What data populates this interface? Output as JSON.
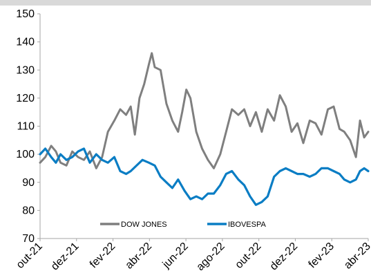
{
  "chart_data": {
    "type": "line",
    "title": "",
    "xlabel": "",
    "ylabel": "",
    "ylim": [
      70,
      150
    ],
    "yticks": [
      70,
      80,
      90,
      100,
      110,
      120,
      130,
      140,
      150
    ],
    "x_tick_labels": [
      "out-21",
      "dez-21",
      "fev-22",
      "abr-22",
      "jun-22",
      "ago-22",
      "out-22",
      "dez-22",
      "fev-23",
      "abr-23"
    ],
    "grid": false,
    "legend_position": "bottom-left",
    "x_start": "2021-10-01",
    "x_end": "2023-04-15",
    "series": [
      {
        "name": "DOW JONES",
        "color": "#7f7f7f",
        "points": [
          [
            "2021-10-01",
            97
          ],
          [
            "2021-10-10",
            99
          ],
          [
            "2021-10-20",
            103
          ],
          [
            "2021-10-28",
            101
          ],
          [
            "2021-11-05",
            97
          ],
          [
            "2021-11-15",
            96
          ],
          [
            "2021-11-25",
            101
          ],
          [
            "2021-12-05",
            99
          ],
          [
            "2021-12-15",
            98
          ],
          [
            "2021-12-25",
            101
          ],
          [
            "2022-01-05",
            95
          ],
          [
            "2022-01-15",
            99
          ],
          [
            "2022-01-25",
            108
          ],
          [
            "2022-02-05",
            112
          ],
          [
            "2022-02-15",
            116
          ],
          [
            "2022-02-25",
            114
          ],
          [
            "2022-03-05",
            117
          ],
          [
            "2022-03-12",
            107
          ],
          [
            "2022-03-20",
            120
          ],
          [
            "2022-03-28",
            125
          ],
          [
            "2022-04-05",
            132
          ],
          [
            "2022-04-10",
            136
          ],
          [
            "2022-04-15",
            131
          ],
          [
            "2022-04-25",
            130
          ],
          [
            "2022-05-05",
            118
          ],
          [
            "2022-05-15",
            112
          ],
          [
            "2022-05-25",
            108
          ],
          [
            "2022-06-01",
            115
          ],
          [
            "2022-06-08",
            123
          ],
          [
            "2022-06-15",
            120
          ],
          [
            "2022-06-25",
            108
          ],
          [
            "2022-07-05",
            102
          ],
          [
            "2022-07-15",
            98
          ],
          [
            "2022-07-25",
            95
          ],
          [
            "2022-08-05",
            100
          ],
          [
            "2022-08-15",
            108
          ],
          [
            "2022-08-25",
            116
          ],
          [
            "2022-09-05",
            114
          ],
          [
            "2022-09-15",
            116
          ],
          [
            "2022-09-25",
            110
          ],
          [
            "2022-10-05",
            115
          ],
          [
            "2022-10-15",
            108
          ],
          [
            "2022-10-25",
            116
          ],
          [
            "2022-11-05",
            112
          ],
          [
            "2022-11-15",
            121
          ],
          [
            "2022-11-25",
            117
          ],
          [
            "2022-12-05",
            108
          ],
          [
            "2022-12-15",
            111
          ],
          [
            "2022-12-25",
            104
          ],
          [
            "2023-01-05",
            112
          ],
          [
            "2023-01-15",
            111
          ],
          [
            "2023-01-25",
            107
          ],
          [
            "2023-02-05",
            116
          ],
          [
            "2023-02-15",
            117
          ],
          [
            "2023-02-25",
            109
          ],
          [
            "2023-03-05",
            108
          ],
          [
            "2023-03-15",
            105
          ],
          [
            "2023-03-25",
            99
          ],
          [
            "2023-04-01",
            112
          ],
          [
            "2023-04-08",
            106
          ],
          [
            "2023-04-15",
            108
          ]
        ]
      },
      {
        "name": "IBOVESPA",
        "color": "#0a7dc4",
        "points": [
          [
            "2021-10-01",
            100
          ],
          [
            "2021-10-10",
            102
          ],
          [
            "2021-10-20",
            99
          ],
          [
            "2021-10-28",
            97
          ],
          [
            "2021-11-05",
            100
          ],
          [
            "2021-11-15",
            98
          ],
          [
            "2021-11-25",
            99
          ],
          [
            "2021-12-05",
            101
          ],
          [
            "2021-12-15",
            102
          ],
          [
            "2021-12-25",
            97
          ],
          [
            "2022-01-05",
            100
          ],
          [
            "2022-01-15",
            98
          ],
          [
            "2022-01-25",
            97
          ],
          [
            "2022-02-05",
            99
          ],
          [
            "2022-02-15",
            94
          ],
          [
            "2022-02-25",
            93
          ],
          [
            "2022-03-05",
            94
          ],
          [
            "2022-03-15",
            96
          ],
          [
            "2022-03-25",
            98
          ],
          [
            "2022-04-05",
            97
          ],
          [
            "2022-04-15",
            96
          ],
          [
            "2022-04-25",
            92
          ],
          [
            "2022-05-05",
            90
          ],
          [
            "2022-05-15",
            88
          ],
          [
            "2022-05-25",
            91
          ],
          [
            "2022-06-05",
            87
          ],
          [
            "2022-06-15",
            84
          ],
          [
            "2022-06-25",
            85
          ],
          [
            "2022-07-05",
            84
          ],
          [
            "2022-07-15",
            86
          ],
          [
            "2022-07-25",
            86
          ],
          [
            "2022-08-05",
            89
          ],
          [
            "2022-08-15",
            93
          ],
          [
            "2022-08-25",
            94
          ],
          [
            "2022-09-05",
            91
          ],
          [
            "2022-09-15",
            89
          ],
          [
            "2022-09-25",
            85
          ],
          [
            "2022-10-05",
            82
          ],
          [
            "2022-10-15",
            83
          ],
          [
            "2022-10-25",
            85
          ],
          [
            "2022-11-05",
            92
          ],
          [
            "2022-11-15",
            94
          ],
          [
            "2022-11-25",
            95
          ],
          [
            "2022-12-05",
            94
          ],
          [
            "2022-12-15",
            93
          ],
          [
            "2022-12-25",
            93
          ],
          [
            "2023-01-05",
            92
          ],
          [
            "2023-01-15",
            93
          ],
          [
            "2023-01-25",
            95
          ],
          [
            "2023-02-05",
            95
          ],
          [
            "2023-02-15",
            94
          ],
          [
            "2023-02-25",
            93
          ],
          [
            "2023-03-05",
            91
          ],
          [
            "2023-03-15",
            90
          ],
          [
            "2023-03-25",
            91
          ],
          [
            "2023-04-01",
            94
          ],
          [
            "2023-04-08",
            95
          ],
          [
            "2023-04-15",
            94
          ]
        ]
      }
    ]
  }
}
